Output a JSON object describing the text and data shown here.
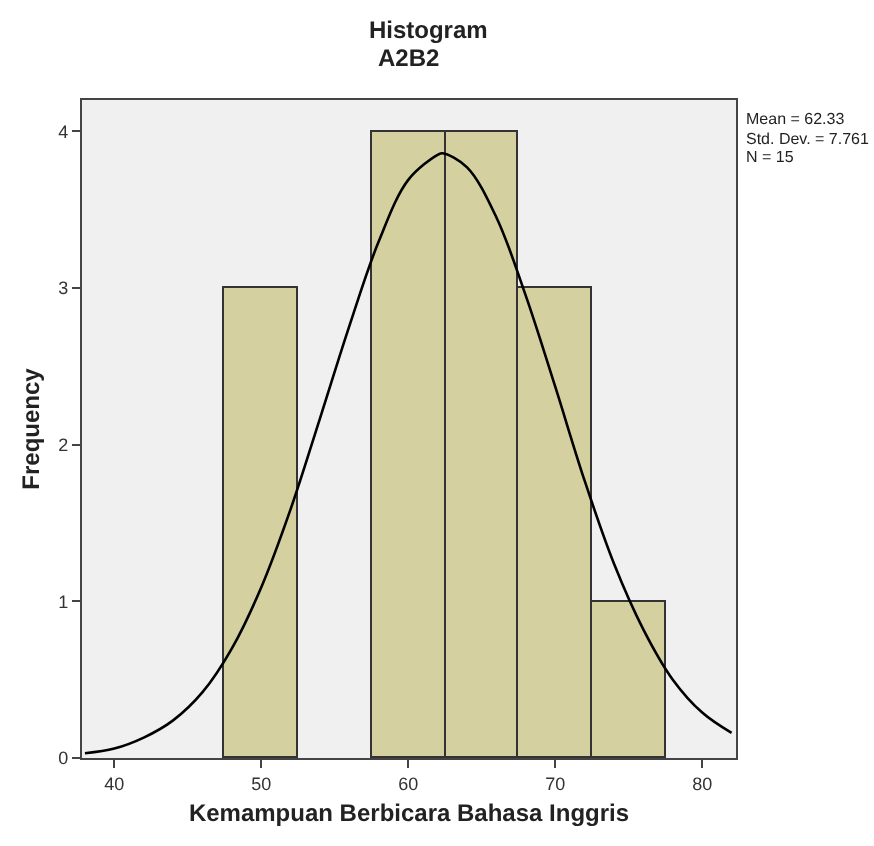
{
  "chart_data": {
    "type": "histogram",
    "title": "Histogram",
    "subtitle": "A2B2",
    "xlabel": "Kemampuan Berbicara Bahasa Inggris",
    "ylabel": "Frequency",
    "bins": [
      47.5,
      52.5,
      57.5,
      62.5,
      67.5,
      72.5,
      77.5
    ],
    "values": [
      3,
      0,
      4,
      4,
      3,
      1
    ],
    "color": "#d4d0a0",
    "series": [
      {
        "type": "line",
        "color": "#000000",
        "x": [
          38,
          40,
          42,
          44,
          46,
          48,
          50,
          52,
          54,
          56,
          58,
          60,
          62,
          62.33,
          64,
          66,
          68,
          70,
          72,
          74,
          76,
          78,
          80,
          82
        ],
        "values": [
          0.03,
          0.06,
          0.13,
          0.24,
          0.42,
          0.7,
          1.09,
          1.59,
          2.17,
          2.76,
          3.3,
          3.69,
          3.85,
          3.86,
          3.77,
          3.45,
          2.95,
          2.37,
          1.77,
          1.24,
          0.82,
          0.5,
          0.29,
          0.16
        ]
      }
    ],
    "xlim": [
      37.8,
      82.3
    ],
    "xticks": [
      40,
      50,
      60,
      70,
      80
    ],
    "ylim": [
      0,
      4.2
    ],
    "yticks": [
      0,
      1,
      2,
      3,
      4
    ],
    "grid": false,
    "annotations": [
      "Mean = 62.33",
      "Std. Dev. = 7.761",
      "N = 15"
    ]
  }
}
